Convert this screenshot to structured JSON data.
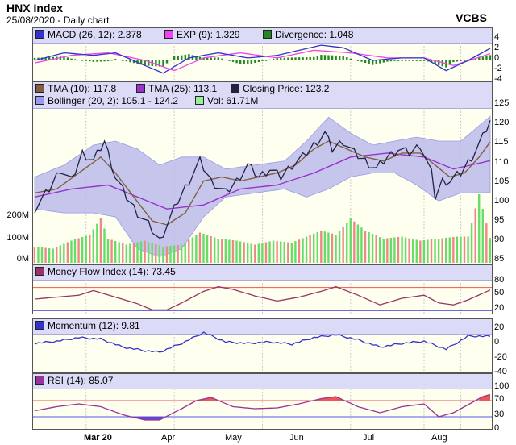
{
  "header": {
    "title": "HNX Index",
    "subtitle": "25/08/2020 - Daily chart",
    "brand": "VCBS"
  },
  "x_labels": [
    {
      "label": "Mar 20",
      "bold": true
    },
    {
      "label": "Apr",
      "bold": false
    },
    {
      "label": "May",
      "bold": false
    },
    {
      "label": "Jun",
      "bold": false
    },
    {
      "label": "Jul",
      "bold": false
    },
    {
      "label": "Aug",
      "bold": false
    }
  ],
  "colors": {
    "macd": "#3333cc",
    "exp": "#ee44ee",
    "div": "#228822",
    "tma10": "#806040",
    "tma25": "#9933cc",
    "close": "#222244",
    "band": "#b8b8ec",
    "vol_up": "#66dd66",
    "vol_dn": "#ee8888",
    "mfi": "#993366",
    "mom": "#3333cc",
    "rsi": "#993399",
    "rsi_over": "#ee5555",
    "rsi_under": "#6644cc"
  },
  "legends": {
    "macd": [
      {
        "label": "MACD (26, 12): 2.378",
        "color": "#3333cc"
      },
      {
        "label": "EXP (9): 1.329",
        "color": "#ee44ee"
      },
      {
        "label": "Divergence: 1.048",
        "color": "#228822"
      }
    ],
    "main_row1": [
      {
        "label": "TMA (10): 117.8",
        "color": "#806040"
      },
      {
        "label": "TMA (25): 113.1",
        "color": "#9933cc"
      },
      {
        "label": "Closing Price: 123.2",
        "color": "#222244"
      }
    ],
    "main_row2": [
      {
        "label": "Bollinger (20, 2): 105.1 - 124.2",
        "color": "#9999ee"
      },
      {
        "label": "Vol: 61.71M",
        "color": "#99ee99"
      }
    ],
    "mfi": [
      {
        "label": "Money Flow Index (14): 73.45",
        "color": "#993366"
      }
    ],
    "mom": [
      {
        "label": "Momentum (12): 9.81",
        "color": "#3333cc"
      }
    ],
    "rsi": [
      {
        "label": "RSI (14): 85.07",
        "color": "#993399"
      }
    ]
  },
  "axes": {
    "macd_ticks": [
      "4",
      "2",
      "0",
      "-2",
      "-4"
    ],
    "price_ticks": [
      "125",
      "120",
      "115",
      "110",
      "105",
      "100",
      "95",
      "90",
      "85"
    ],
    "vol_ticks": [
      "200M",
      "100M",
      "0M"
    ],
    "mfi_ticks": [
      "80",
      "50",
      "20"
    ],
    "mom_ticks": [
      "20",
      "0",
      "-20",
      "-40"
    ],
    "rsi_ticks": [
      "100",
      "70",
      "30",
      "0"
    ]
  },
  "chart_data": {
    "type": "line",
    "title": "HNX Index",
    "n_days": 125,
    "closing_price": [
      {
        "i": 0,
        "v": 101
      },
      {
        "i": 4,
        "v": 106
      },
      {
        "i": 7,
        "v": 111
      },
      {
        "i": 10,
        "v": 108
      },
      {
        "i": 13,
        "v": 115
      },
      {
        "i": 16,
        "v": 113
      },
      {
        "i": 19,
        "v": 118
      },
      {
        "i": 22,
        "v": 109
      },
      {
        "i": 25,
        "v": 104
      },
      {
        "i": 28,
        "v": 100
      },
      {
        "i": 31,
        "v": 97
      },
      {
        "i": 34,
        "v": 93
      },
      {
        "i": 36,
        "v": 97
      },
      {
        "i": 39,
        "v": 103
      },
      {
        "i": 42,
        "v": 108
      },
      {
        "i": 45,
        "v": 113
      },
      {
        "i": 48,
        "v": 108
      },
      {
        "i": 52,
        "v": 105
      },
      {
        "i": 55,
        "v": 108
      },
      {
        "i": 58,
        "v": 112
      },
      {
        "i": 61,
        "v": 109
      },
      {
        "i": 64,
        "v": 111
      },
      {
        "i": 67,
        "v": 109
      },
      {
        "i": 70,
        "v": 112
      },
      {
        "i": 73,
        "v": 114
      },
      {
        "i": 76,
        "v": 117
      },
      {
        "i": 79,
        "v": 120
      },
      {
        "i": 81,
        "v": 116
      },
      {
        "i": 84,
        "v": 118
      },
      {
        "i": 87,
        "v": 115
      },
      {
        "i": 90,
        "v": 113
      },
      {
        "i": 93,
        "v": 111
      },
      {
        "i": 96,
        "v": 114
      },
      {
        "i": 99,
        "v": 116
      },
      {
        "i": 102,
        "v": 115
      },
      {
        "i": 105,
        "v": 117
      },
      {
        "i": 108,
        "v": 110
      },
      {
        "i": 109,
        "v": 104
      },
      {
        "i": 111,
        "v": 108
      },
      {
        "i": 113,
        "v": 108
      },
      {
        "i": 116,
        "v": 110
      },
      {
        "i": 119,
        "v": 114
      },
      {
        "i": 122,
        "v": 119
      },
      {
        "i": 124,
        "v": 123.2
      }
    ],
    "tma10": [
      {
        "i": 0,
        "v": 105
      },
      {
        "i": 6,
        "v": 106
      },
      {
        "i": 12,
        "v": 110
      },
      {
        "i": 18,
        "v": 114
      },
      {
        "i": 22,
        "v": 110
      },
      {
        "i": 27,
        "v": 104
      },
      {
        "i": 32,
        "v": 98
      },
      {
        "i": 36,
        "v": 97
      },
      {
        "i": 41,
        "v": 100
      },
      {
        "i": 46,
        "v": 108
      },
      {
        "i": 51,
        "v": 109
      },
      {
        "i": 56,
        "v": 108
      },
      {
        "i": 61,
        "v": 109
      },
      {
        "i": 66,
        "v": 110
      },
      {
        "i": 71,
        "v": 112
      },
      {
        "i": 76,
        "v": 116
      },
      {
        "i": 80,
        "v": 118
      },
      {
        "i": 85,
        "v": 116
      },
      {
        "i": 90,
        "v": 114
      },
      {
        "i": 95,
        "v": 113
      },
      {
        "i": 100,
        "v": 115
      },
      {
        "i": 105,
        "v": 115
      },
      {
        "i": 109,
        "v": 112
      },
      {
        "i": 113,
        "v": 109
      },
      {
        "i": 117,
        "v": 110
      },
      {
        "i": 121,
        "v": 114
      },
      {
        "i": 124,
        "v": 117.8
      }
    ],
    "tma25": [
      {
        "i": 0,
        "v": 104
      },
      {
        "i": 10,
        "v": 106
      },
      {
        "i": 20,
        "v": 107
      },
      {
        "i": 28,
        "v": 104
      },
      {
        "i": 36,
        "v": 101
      },
      {
        "i": 46,
        "v": 102
      },
      {
        "i": 56,
        "v": 106
      },
      {
        "i": 66,
        "v": 107
      },
      {
        "i": 76,
        "v": 110
      },
      {
        "i": 86,
        "v": 114
      },
      {
        "i": 96,
        "v": 115
      },
      {
        "i": 106,
        "v": 114
      },
      {
        "i": 114,
        "v": 111
      },
      {
        "i": 124,
        "v": 113.1
      }
    ],
    "bollinger_upper": [
      {
        "i": 0,
        "v": 109
      },
      {
        "i": 8,
        "v": 112
      },
      {
        "i": 16,
        "v": 117
      },
      {
        "i": 22,
        "v": 118
      },
      {
        "i": 28,
        "v": 116
      },
      {
        "i": 34,
        "v": 112
      },
      {
        "i": 40,
        "v": 114
      },
      {
        "i": 46,
        "v": 114
      },
      {
        "i": 52,
        "v": 111
      },
      {
        "i": 60,
        "v": 112
      },
      {
        "i": 68,
        "v": 113
      },
      {
        "i": 74,
        "v": 118
      },
      {
        "i": 80,
        "v": 124
      },
      {
        "i": 86,
        "v": 120
      },
      {
        "i": 92,
        "v": 117
      },
      {
        "i": 98,
        "v": 118
      },
      {
        "i": 104,
        "v": 119
      },
      {
        "i": 110,
        "v": 118
      },
      {
        "i": 116,
        "v": 118
      },
      {
        "i": 124,
        "v": 124.2
      }
    ],
    "bollinger_lower": [
      {
        "i": 0,
        "v": 101
      },
      {
        "i": 8,
        "v": 100
      },
      {
        "i": 16,
        "v": 100
      },
      {
        "i": 22,
        "v": 99
      },
      {
        "i": 28,
        "v": 91
      },
      {
        "i": 34,
        "v": 89
      },
      {
        "i": 40,
        "v": 91
      },
      {
        "i": 46,
        "v": 99
      },
      {
        "i": 52,
        "v": 104
      },
      {
        "i": 60,
        "v": 105
      },
      {
        "i": 68,
        "v": 106
      },
      {
        "i": 74,
        "v": 104
      },
      {
        "i": 80,
        "v": 106
      },
      {
        "i": 86,
        "v": 109
      },
      {
        "i": 92,
        "v": 110
      },
      {
        "i": 98,
        "v": 110
      },
      {
        "i": 104,
        "v": 107
      },
      {
        "i": 110,
        "v": 103
      },
      {
        "i": 116,
        "v": 105
      },
      {
        "i": 124,
        "v": 105.1
      }
    ],
    "macd": [
      {
        "i": 0,
        "v": 0
      },
      {
        "i": 8,
        "v": 1.5
      },
      {
        "i": 16,
        "v": 1
      },
      {
        "i": 22,
        "v": 1.5
      },
      {
        "i": 30,
        "v": -1
      },
      {
        "i": 35,
        "v": -2.5
      },
      {
        "i": 42,
        "v": 0.5
      },
      {
        "i": 50,
        "v": 1.5
      },
      {
        "i": 58,
        "v": 0.5
      },
      {
        "i": 66,
        "v": 1
      },
      {
        "i": 72,
        "v": 2
      },
      {
        "i": 78,
        "v": 3
      },
      {
        "i": 84,
        "v": 2.5
      },
      {
        "i": 92,
        "v": 0
      },
      {
        "i": 100,
        "v": 0.5
      },
      {
        "i": 106,
        "v": 0.5
      },
      {
        "i": 112,
        "v": -2
      },
      {
        "i": 118,
        "v": 0
      },
      {
        "i": 124,
        "v": 2.378
      }
    ],
    "exp": [
      {
        "i": 0,
        "v": -0.5
      },
      {
        "i": 10,
        "v": 1
      },
      {
        "i": 20,
        "v": 1.5
      },
      {
        "i": 30,
        "v": 0
      },
      {
        "i": 38,
        "v": -2
      },
      {
        "i": 46,
        "v": 0.5
      },
      {
        "i": 56,
        "v": 1.5
      },
      {
        "i": 66,
        "v": 0.5
      },
      {
        "i": 76,
        "v": 2
      },
      {
        "i": 86,
        "v": 1.5
      },
      {
        "i": 96,
        "v": 0.5
      },
      {
        "i": 106,
        "v": 0.5
      },
      {
        "i": 114,
        "v": -1
      },
      {
        "i": 124,
        "v": 1.329
      }
    ],
    "mfi": [
      {
        "i": 0,
        "v": 50
      },
      {
        "i": 6,
        "v": 55
      },
      {
        "i": 12,
        "v": 60
      },
      {
        "i": 16,
        "v": 72
      },
      {
        "i": 22,
        "v": 55
      },
      {
        "i": 28,
        "v": 38
      },
      {
        "i": 32,
        "v": 22
      },
      {
        "i": 36,
        "v": 22
      },
      {
        "i": 40,
        "v": 40
      },
      {
        "i": 46,
        "v": 70
      },
      {
        "i": 50,
        "v": 82
      },
      {
        "i": 54,
        "v": 75
      },
      {
        "i": 60,
        "v": 58
      },
      {
        "i": 66,
        "v": 45
      },
      {
        "i": 72,
        "v": 55
      },
      {
        "i": 78,
        "v": 70
      },
      {
        "i": 82,
        "v": 82
      },
      {
        "i": 88,
        "v": 60
      },
      {
        "i": 94,
        "v": 35
      },
      {
        "i": 100,
        "v": 52
      },
      {
        "i": 106,
        "v": 60
      },
      {
        "i": 110,
        "v": 40
      },
      {
        "i": 114,
        "v": 35
      },
      {
        "i": 118,
        "v": 48
      },
      {
        "i": 124,
        "v": 73.45
      }
    ],
    "momentum": [
      {
        "i": 0,
        "v": 0
      },
      {
        "i": 6,
        "v": 3
      },
      {
        "i": 12,
        "v": 8
      },
      {
        "i": 18,
        "v": 6
      },
      {
        "i": 24,
        "v": -5
      },
      {
        "i": 30,
        "v": -10
      },
      {
        "i": 34,
        "v": -12
      },
      {
        "i": 40,
        "v": 0
      },
      {
        "i": 46,
        "v": 15
      },
      {
        "i": 52,
        "v": 2
      },
      {
        "i": 58,
        "v": 0
      },
      {
        "i": 64,
        "v": 2
      },
      {
        "i": 70,
        "v": -1
      },
      {
        "i": 76,
        "v": 8
      },
      {
        "i": 82,
        "v": 12
      },
      {
        "i": 88,
        "v": 5
      },
      {
        "i": 94,
        "v": -5
      },
      {
        "i": 100,
        "v": 0
      },
      {
        "i": 106,
        "v": 3
      },
      {
        "i": 112,
        "v": -8
      },
      {
        "i": 118,
        "v": 10
      },
      {
        "i": 124,
        "v": 9.81
      }
    ],
    "rsi": [
      {
        "i": 0,
        "v": 45
      },
      {
        "i": 6,
        "v": 55
      },
      {
        "i": 12,
        "v": 62
      },
      {
        "i": 18,
        "v": 55
      },
      {
        "i": 24,
        "v": 35
      },
      {
        "i": 30,
        "v": 22
      },
      {
        "i": 34,
        "v": 22
      },
      {
        "i": 40,
        "v": 50
      },
      {
        "i": 44,
        "v": 70
      },
      {
        "i": 48,
        "v": 78
      },
      {
        "i": 54,
        "v": 55
      },
      {
        "i": 60,
        "v": 50
      },
      {
        "i": 66,
        "v": 52
      },
      {
        "i": 72,
        "v": 62
      },
      {
        "i": 78,
        "v": 75
      },
      {
        "i": 82,
        "v": 80
      },
      {
        "i": 88,
        "v": 55
      },
      {
        "i": 94,
        "v": 40
      },
      {
        "i": 100,
        "v": 55
      },
      {
        "i": 106,
        "v": 62
      },
      {
        "i": 110,
        "v": 30
      },
      {
        "i": 114,
        "v": 40
      },
      {
        "i": 118,
        "v": 60
      },
      {
        "i": 122,
        "v": 80
      },
      {
        "i": 124,
        "v": 85.07
      }
    ],
    "volume_max": 250,
    "volume": [
      {
        "i": 5,
        "v": 35
      },
      {
        "i": 10,
        "v": 55
      },
      {
        "i": 15,
        "v": 70
      },
      {
        "i": 18,
        "v": 110
      },
      {
        "i": 20,
        "v": 60
      },
      {
        "i": 25,
        "v": 45
      },
      {
        "i": 30,
        "v": 55
      },
      {
        "i": 35,
        "v": 40
      },
      {
        "i": 40,
        "v": 45
      },
      {
        "i": 45,
        "v": 75
      },
      {
        "i": 50,
        "v": 60
      },
      {
        "i": 55,
        "v": 55
      },
      {
        "i": 60,
        "v": 45
      },
      {
        "i": 65,
        "v": 55
      },
      {
        "i": 70,
        "v": 50
      },
      {
        "i": 74,
        "v": 65
      },
      {
        "i": 78,
        "v": 80
      },
      {
        "i": 82,
        "v": 70
      },
      {
        "i": 86,
        "v": 110
      },
      {
        "i": 90,
        "v": 80
      },
      {
        "i": 95,
        "v": 60
      },
      {
        "i": 100,
        "v": 65
      },
      {
        "i": 105,
        "v": 55
      },
      {
        "i": 110,
        "v": 60
      },
      {
        "i": 115,
        "v": 65
      },
      {
        "i": 118,
        "v": 65
      },
      {
        "i": 121,
        "v": 170
      },
      {
        "i": 124,
        "v": 61.71
      }
    ]
  }
}
